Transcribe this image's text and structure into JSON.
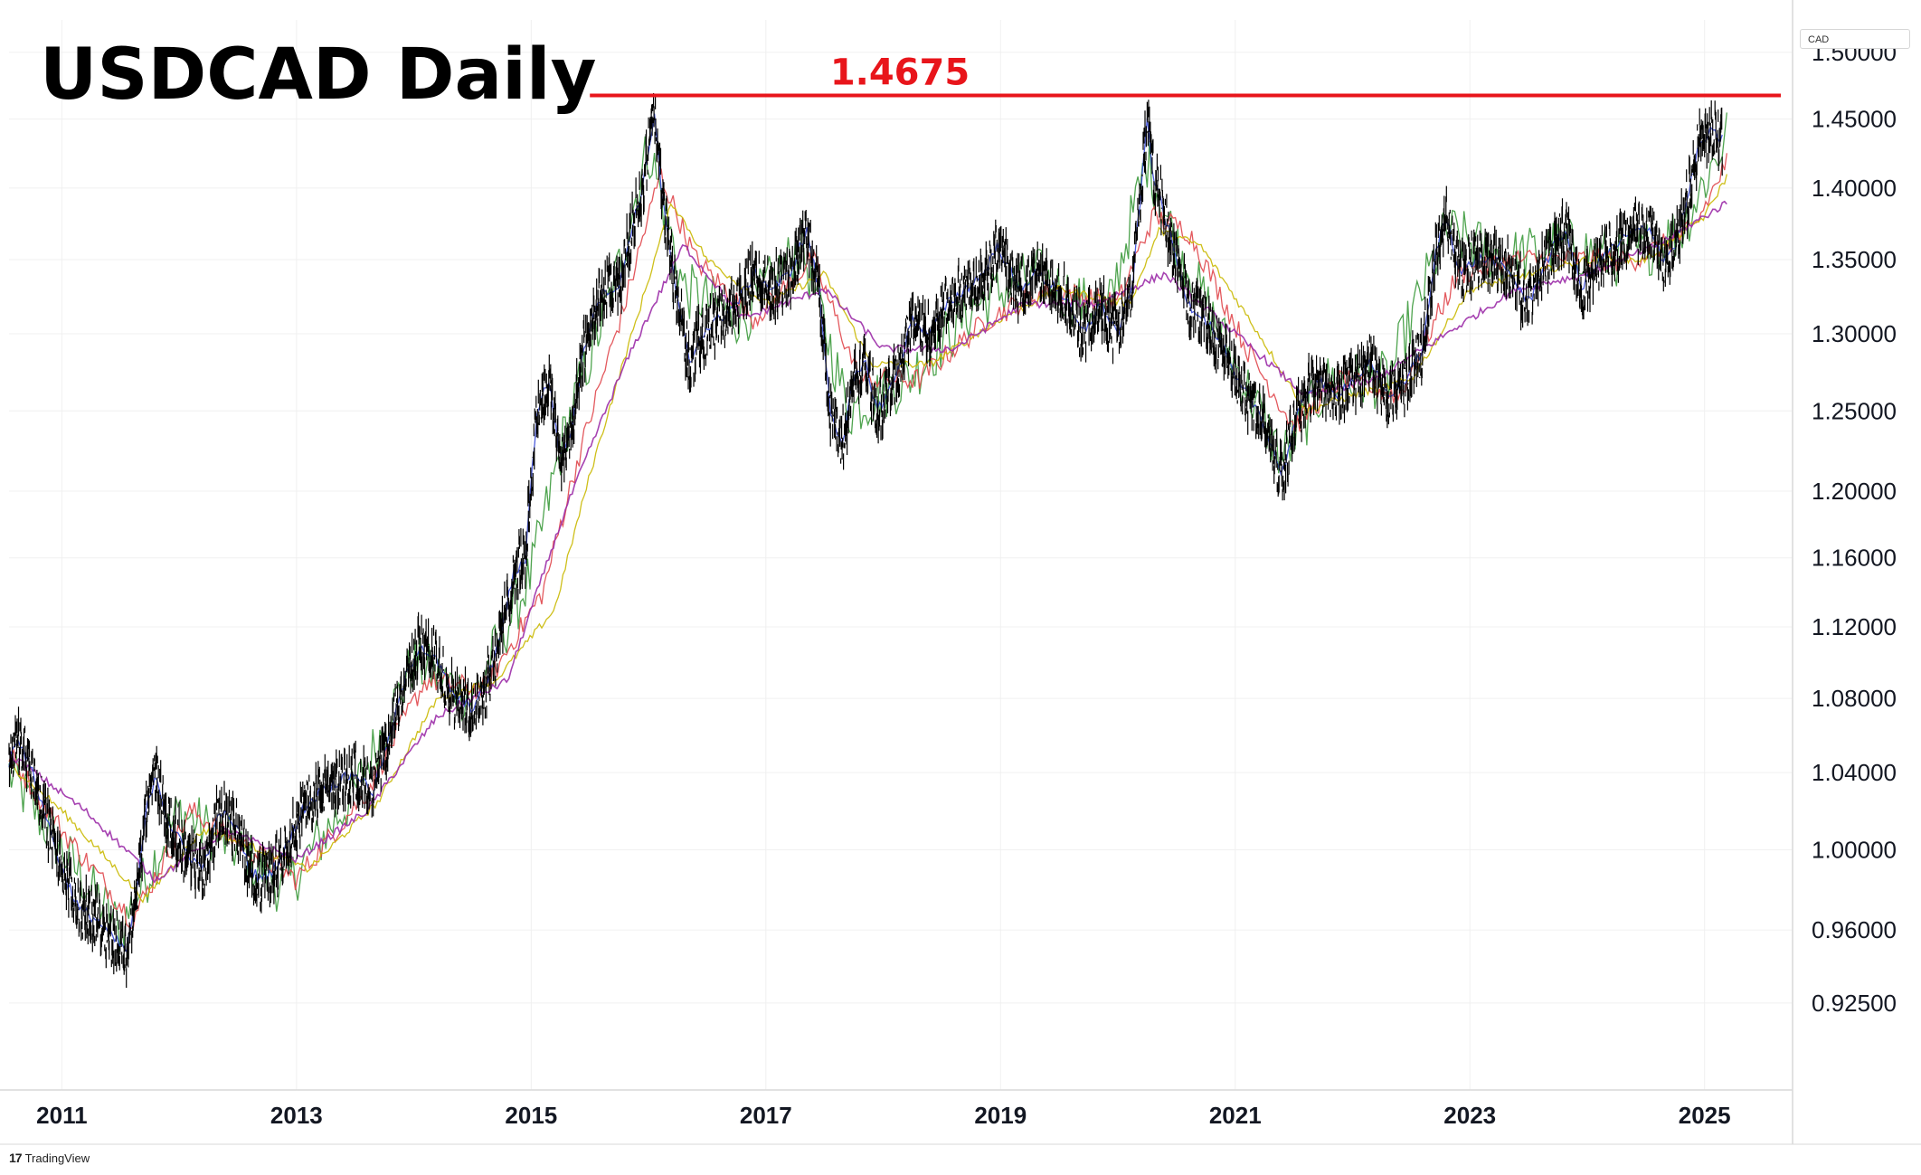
{
  "title": "USDCAD Daily",
  "currency_label": "CAD",
  "watermark": "TradingView",
  "colors": {
    "background": "#ffffff",
    "grid": "#f0f0f0",
    "price": "#000000",
    "resistance": "#e8151b",
    "ma_green": "#3c9a3c",
    "ma_red": "#e0474c",
    "ma_yellow": "#c9b800",
    "ma_blue": "#2d3fd6",
    "ma_purple": "#9c2ea8",
    "ma_teal": "#2aa8b0"
  },
  "chart_data": {
    "type": "line",
    "title": "USDCAD Daily",
    "xlabel": "",
    "ylabel": "",
    "y_scale": "log",
    "ylim": [
      0.885,
      1.525
    ],
    "xlim": [
      2010.55,
      2025.75
    ],
    "x_ticks": [
      {
        "label": "2011",
        "value": 2011.0
      },
      {
        "label": "2013",
        "value": 2013.0
      },
      {
        "label": "2015",
        "value": 2015.0
      },
      {
        "label": "2017",
        "value": 2017.0
      },
      {
        "label": "2019",
        "value": 2019.0
      },
      {
        "label": "2021",
        "value": 2021.0
      },
      {
        "label": "2023",
        "value": 2023.0
      },
      {
        "label": "2025",
        "value": 2025.0
      }
    ],
    "y_ticks": [
      {
        "label": "1.50000",
        "value": 1.5
      },
      {
        "label": "1.45000",
        "value": 1.45
      },
      {
        "label": "1.40000",
        "value": 1.4
      },
      {
        "label": "1.35000",
        "value": 1.35
      },
      {
        "label": "1.30000",
        "value": 1.3
      },
      {
        "label": "1.25000",
        "value": 1.25
      },
      {
        "label": "1.20000",
        "value": 1.2
      },
      {
        "label": "1.16000",
        "value": 1.16
      },
      {
        "label": "1.12000",
        "value": 1.12
      },
      {
        "label": "1.08000",
        "value": 1.08
      },
      {
        "label": "1.04000",
        "value": 1.04
      },
      {
        "label": "1.00000",
        "value": 1.0
      },
      {
        "label": "0.96000",
        "value": 0.96
      },
      {
        "label": "0.92500",
        "value": 0.925
      }
    ],
    "grid": true,
    "resistance": {
      "label": "1.4675",
      "value": 1.4675,
      "x_start": 2015.5,
      "x_end": 2025.65
    },
    "series": [
      {
        "role": "price",
        "x": [
          2010.55,
          2010.62,
          2010.75,
          2010.9,
          2011.0,
          2011.15,
          2011.3,
          2011.45,
          2011.55,
          2011.63,
          2011.72,
          2011.8,
          2011.9,
          2012.05,
          2012.2,
          2012.35,
          2012.5,
          2012.6,
          2012.7,
          2012.8,
          2012.9,
          2013.05,
          2013.2,
          2013.35,
          2013.5,
          2013.65,
          2013.8,
          2013.92,
          2014.05,
          2014.2,
          2014.35,
          2014.5,
          2014.6,
          2014.72,
          2014.85,
          2014.95,
          2015.05,
          2015.15,
          2015.25,
          2015.35,
          2015.45,
          2015.55,
          2015.65,
          2015.75,
          2015.85,
          2015.95,
          2016.05,
          2016.12,
          2016.25,
          2016.35,
          2016.45,
          2016.6,
          2016.75,
          2016.9,
          2017.05,
          2017.2,
          2017.35,
          2017.45,
          2017.55,
          2017.65,
          2017.75,
          2017.85,
          2017.95,
          2018.1,
          2018.25,
          2018.4,
          2018.55,
          2018.7,
          2018.85,
          2018.98,
          2019.15,
          2019.3,
          2019.5,
          2019.7,
          2019.85,
          2020.0,
          2020.12,
          2020.2,
          2020.25,
          2020.3,
          2020.4,
          2020.5,
          2020.6,
          2020.75,
          2020.9,
          2021.0,
          2021.1,
          2021.2,
          2021.3,
          2021.4,
          2021.5,
          2021.6,
          2021.7,
          2021.85,
          2022.0,
          2022.15,
          2022.3,
          2022.45,
          2022.6,
          2022.72,
          2022.8,
          2022.92,
          2023.05,
          2023.2,
          2023.35,
          2023.5,
          2023.6,
          2023.72,
          2023.82,
          2023.95,
          2024.1,
          2024.25,
          2024.4,
          2024.55,
          2024.65,
          2024.75,
          2024.85,
          2024.95,
          2025.05,
          2025.15
        ],
        "values": [
          1.045,
          1.06,
          1.04,
          1.01,
          0.99,
          0.97,
          0.965,
          0.955,
          0.95,
          0.975,
          1.02,
          1.04,
          1.015,
          1.0,
          0.99,
          1.02,
          1.01,
          0.99,
          0.985,
          0.99,
          1.0,
          1.02,
          1.03,
          1.035,
          1.04,
          1.03,
          1.06,
          1.09,
          1.11,
          1.1,
          1.08,
          1.075,
          1.085,
          1.11,
          1.15,
          1.16,
          1.25,
          1.27,
          1.22,
          1.24,
          1.29,
          1.32,
          1.33,
          1.33,
          1.37,
          1.4,
          1.455,
          1.39,
          1.32,
          1.28,
          1.3,
          1.31,
          1.32,
          1.34,
          1.33,
          1.34,
          1.37,
          1.33,
          1.25,
          1.23,
          1.27,
          1.28,
          1.25,
          1.27,
          1.31,
          1.3,
          1.32,
          1.33,
          1.34,
          1.36,
          1.33,
          1.34,
          1.33,
          1.3,
          1.32,
          1.3,
          1.33,
          1.4,
          1.45,
          1.41,
          1.38,
          1.35,
          1.32,
          1.31,
          1.29,
          1.27,
          1.26,
          1.25,
          1.23,
          1.21,
          1.24,
          1.26,
          1.27,
          1.26,
          1.27,
          1.28,
          1.26,
          1.27,
          1.29,
          1.36,
          1.38,
          1.34,
          1.35,
          1.35,
          1.34,
          1.32,
          1.34,
          1.36,
          1.37,
          1.33,
          1.35,
          1.36,
          1.37,
          1.37,
          1.35,
          1.36,
          1.39,
          1.43,
          1.44,
          1.435
        ]
      },
      {
        "role": "ma_green",
        "x": [
          2010.55,
          2011.0,
          2011.5,
          2012.0,
          2012.5,
          2012.9,
          2013.5,
          2014.0,
          2014.5,
          2015.0,
          2015.3,
          2015.7,
          2016.0,
          2016.3,
          2016.8,
          2017.3,
          2017.7,
          2018.2,
          2018.8,
          2019.3,
          2019.9,
          2020.25,
          2020.5,
          2021.0,
          2021.4,
          2021.8,
          2022.3,
          2022.8,
          2023.3,
          2023.8,
          2024.3,
          2024.8,
          2025.2
        ],
        "values": [
          1.04,
          1.0,
          0.96,
          1.02,
          1.0,
          0.98,
          1.03,
          1.1,
          1.08,
          1.15,
          1.24,
          1.33,
          1.43,
          1.33,
          1.31,
          1.36,
          1.25,
          1.27,
          1.32,
          1.34,
          1.31,
          1.42,
          1.36,
          1.28,
          1.22,
          1.27,
          1.27,
          1.37,
          1.35,
          1.36,
          1.35,
          1.37,
          1.44
        ]
      },
      {
        "role": "ma_red",
        "x": [
          2010.55,
          2011.0,
          2011.6,
          2012.1,
          2012.6,
          2013.0,
          2013.6,
          2014.1,
          2014.6,
          2015.1,
          2015.4,
          2015.8,
          2016.1,
          2016.4,
          2016.9,
          2017.4,
          2017.8,
          2018.3,
          2018.9,
          2019.4,
          2020.0,
          2020.3,
          2020.6,
          2021.1,
          2021.5,
          2021.9,
          2022.4,
          2022.9,
          2023.4,
          2023.9,
          2024.4,
          2024.9,
          2025.2
        ],
        "values": [
          1.05,
          1.01,
          0.965,
          1.02,
          1.0,
          0.985,
          1.03,
          1.09,
          1.085,
          1.14,
          1.22,
          1.32,
          1.41,
          1.35,
          1.31,
          1.35,
          1.27,
          1.27,
          1.31,
          1.33,
          1.32,
          1.38,
          1.37,
          1.29,
          1.24,
          1.27,
          1.26,
          1.34,
          1.35,
          1.35,
          1.35,
          1.37,
          1.42
        ]
      },
      {
        "role": "ma_yellow",
        "x": [
          2010.55,
          2011.0,
          2011.7,
          2012.2,
          2012.7,
          2013.1,
          2013.7,
          2014.2,
          2014.7,
          2015.2,
          2015.5,
          2015.9,
          2016.2,
          2016.5,
          2017.0,
          2017.5,
          2017.9,
          2018.4,
          2019.0,
          2019.5,
          2020.1,
          2020.35,
          2020.7,
          2021.2,
          2021.6,
          2022.0,
          2022.5,
          2023.0,
          2023.5,
          2024.0,
          2024.5,
          2025.0,
          2025.2
        ],
        "values": [
          1.045,
          1.02,
          0.975,
          1.01,
          1.0,
          0.99,
          1.025,
          1.08,
          1.09,
          1.13,
          1.21,
          1.31,
          1.39,
          1.35,
          1.32,
          1.34,
          1.28,
          1.28,
          1.31,
          1.33,
          1.32,
          1.37,
          1.36,
          1.3,
          1.25,
          1.26,
          1.27,
          1.33,
          1.34,
          1.35,
          1.35,
          1.38,
          1.41
        ]
      },
      {
        "role": "ma_purple",
        "x": [
          2010.55,
          2011.2,
          2011.8,
          2012.4,
          2013.0,
          2013.6,
          2014.2,
          2014.8,
          2015.3,
          2015.8,
          2016.3,
          2016.8,
          2017.5,
          2018.0,
          2018.6,
          2019.2,
          2019.8,
          2020.4,
          2021.0,
          2021.6,
          2022.2,
          2022.8,
          2023.4,
          2024.0,
          2024.6,
          2025.2
        ],
        "values": [
          1.05,
          1.02,
          0.985,
          1.01,
          0.995,
          1.02,
          1.07,
          1.09,
          1.19,
          1.28,
          1.36,
          1.31,
          1.33,
          1.29,
          1.29,
          1.32,
          1.32,
          1.34,
          1.3,
          1.26,
          1.27,
          1.3,
          1.33,
          1.34,
          1.36,
          1.39
        ]
      }
    ]
  }
}
